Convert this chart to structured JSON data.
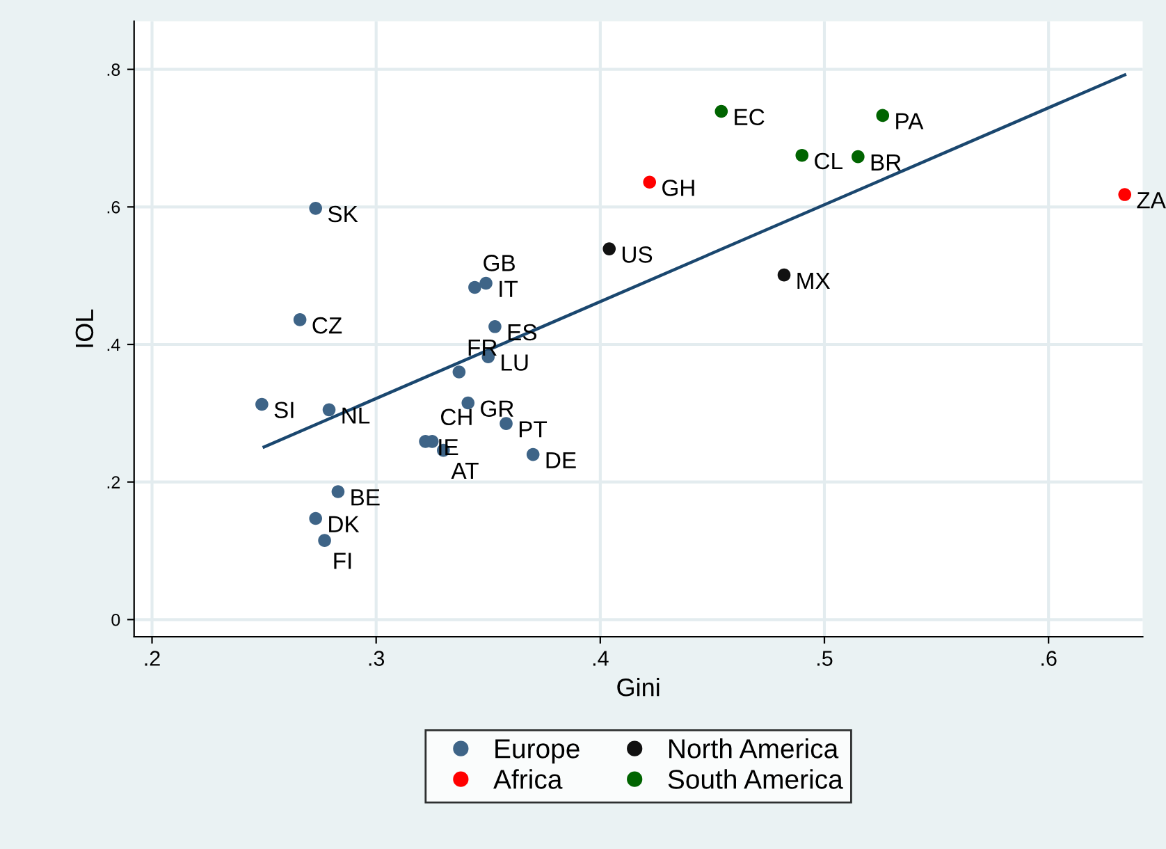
{
  "chart_data": {
    "type": "scatter",
    "xlabel": "Gini",
    "ylabel": "IOL",
    "xlim": [
      0.192,
      0.642
    ],
    "ylim": [
      -0.025,
      0.87
    ],
    "xticks": [
      {
        "value": 0.2,
        "label": ".2"
      },
      {
        "value": 0.3,
        "label": ".3"
      },
      {
        "value": 0.4,
        "label": ".4"
      },
      {
        "value": 0.5,
        "label": ".5"
      },
      {
        "value": 0.6,
        "label": ".6"
      }
    ],
    "yticks": [
      0,
      {
        "value": 0.2,
        "label": ".2"
      },
      {
        "value": 0.4,
        "label": ".4"
      },
      {
        "value": 0.6,
        "label": ".6"
      },
      {
        "value": 0.8,
        "label": ".8"
      }
    ],
    "grid": true,
    "legend": "bottom",
    "marker": "circle",
    "series": [
      {
        "name": "Europe",
        "color": "#3e6487",
        "x": [
          0.273,
          0.266,
          0.249,
          0.279,
          0.349,
          0.344,
          0.353,
          0.35,
          0.337,
          0.341,
          0.358,
          0.322,
          0.325,
          0.33,
          0.37,
          0.283,
          0.273,
          0.277
        ],
        "values": [
          0.598,
          0.436,
          0.313,
          0.305,
          0.489,
          0.483,
          0.426,
          0.382,
          0.36,
          0.315,
          0.285,
          0.259,
          0.259,
          0.246,
          0.24,
          0.186,
          0.147,
          0.115
        ],
        "value_labels": [
          "SK",
          "CZ",
          "SI",
          "NL",
          "IT",
          "GB",
          "ES",
          "LU",
          "FR",
          "GR",
          "PT",
          "IE",
          "CH",
          "AT",
          "DE",
          "BE",
          "DK",
          "FI"
        ]
      },
      {
        "name": "North America",
        "color": "#111111",
        "x": [
          0.404,
          0.482
        ],
        "values": [
          0.539,
          0.501
        ],
        "value_labels": [
          "US",
          "MX"
        ]
      },
      {
        "name": "Africa",
        "color": "#ff0000",
        "x": [
          0.422,
          0.634
        ],
        "values": [
          0.636,
          0.618
        ],
        "value_labels": [
          "GH",
          "ZA"
        ]
      },
      {
        "name": "South America",
        "color": "#006400",
        "x": [
          0.454,
          0.526,
          0.49,
          0.515
        ],
        "values": [
          0.739,
          0.733,
          0.675,
          0.673
        ],
        "value_labels": [
          "EC",
          "PA",
          "CL",
          "BR"
        ]
      },
      {
        "type": "line",
        "color": "#1a476f",
        "x": [
          0.25,
          0.634
        ],
        "values": [
          0.251,
          0.792
        ],
        "marker": "none"
      }
    ]
  }
}
